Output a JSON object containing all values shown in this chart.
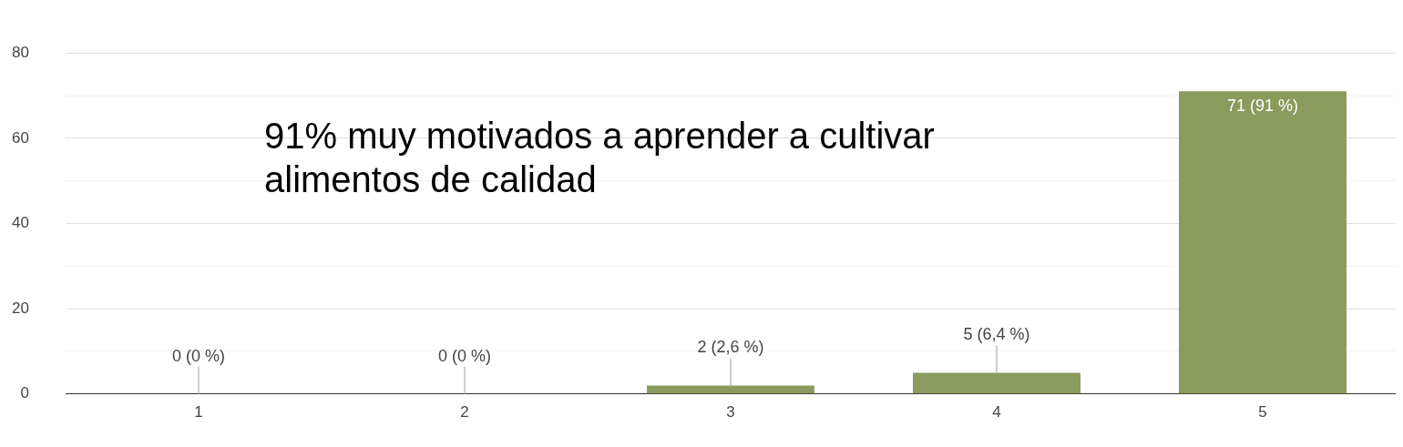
{
  "chart_data": {
    "type": "bar",
    "categories": [
      "1",
      "2",
      "3",
      "4",
      "5"
    ],
    "values": [
      0,
      0,
      2,
      5,
      71
    ],
    "value_labels": [
      "0 (0 %)",
      "0 (0 %)",
      "2 (2,6 %)",
      "5 (6,4 %)",
      "71 (91 %)"
    ],
    "color": "#8a9b5d",
    "ylim": [
      0,
      80
    ],
    "yticks": [
      0,
      {
        "value": 10,
        "label": null
      },
      20,
      {
        "value": 30,
        "label": null
      },
      40,
      {
        "value": 50,
        "label": null
      },
      60,
      {
        "value": 70,
        "label": null
      },
      80
    ],
    "grid": "y",
    "legend": false,
    "annotations": [
      "91% muy motivados a aprender a cultivar alimentos de calidad"
    ]
  }
}
